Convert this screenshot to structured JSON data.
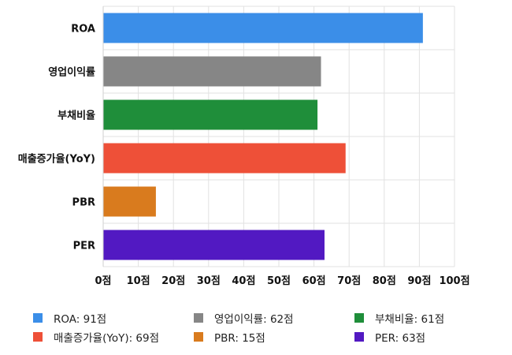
{
  "chart_data": {
    "type": "bar",
    "orientation": "horizontal",
    "categories": [
      "ROA",
      "영업이익률",
      "부채비율",
      "매출증가율(YoY)",
      "PBR",
      "PER"
    ],
    "values": [
      91,
      62,
      61,
      69,
      15,
      63
    ],
    "colors": [
      "#3b8ee8",
      "#868686",
      "#1f8e3a",
      "#ee5038",
      "#d97b1e",
      "#5219c2"
    ],
    "xlim": [
      0,
      100
    ],
    "xticks": [
      "0점",
      "10점",
      "20점",
      "30점",
      "40점",
      "50점",
      "60점",
      "70점",
      "80점",
      "90점",
      "100점"
    ],
    "grid": true,
    "legend_position": "bottom"
  },
  "legend": [
    {
      "label": "ROA: 91점",
      "color": "#3b8ee8"
    },
    {
      "label": "영업이익률: 62점",
      "color": "#868686"
    },
    {
      "label": "부채비율: 61점",
      "color": "#1f8e3a"
    },
    {
      "label": "매출증가율(YoY): 69점",
      "color": "#ee5038"
    },
    {
      "label": "PBR: 15점",
      "color": "#d97b1e"
    },
    {
      "label": "PER: 63점",
      "color": "#5219c2"
    }
  ]
}
